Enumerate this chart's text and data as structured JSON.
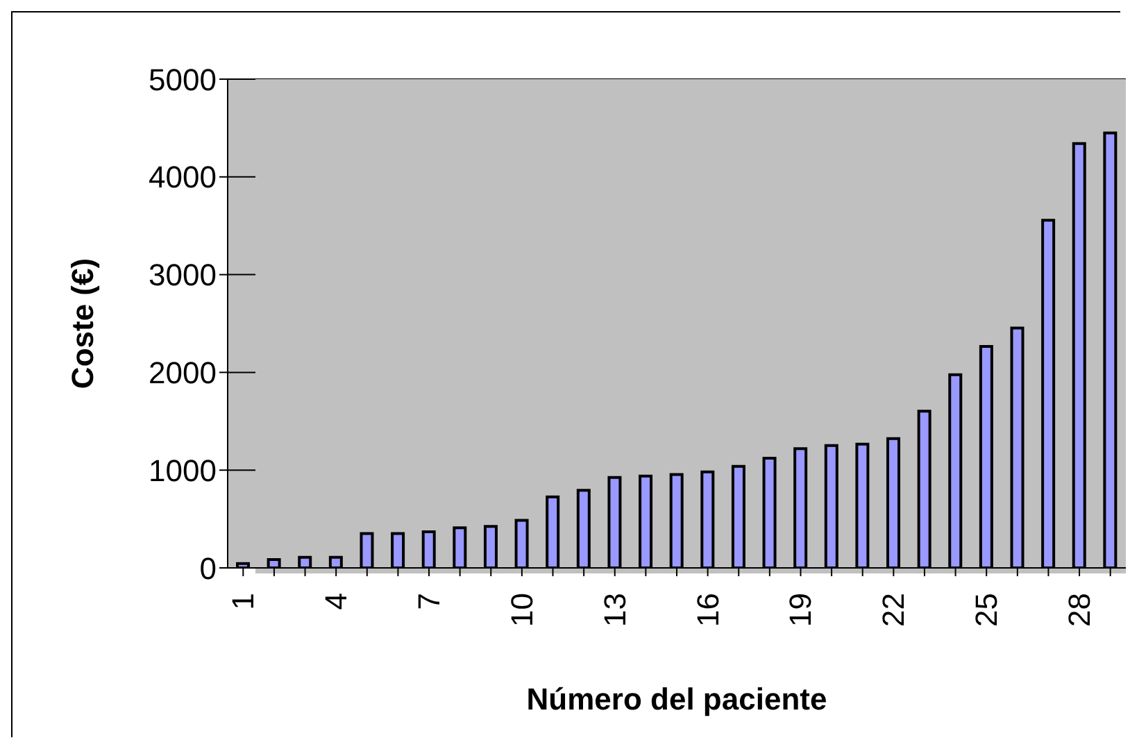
{
  "chart_data": {
    "type": "bar",
    "xlabel": "Número del paciente",
    "ylabel": "Coste (€)",
    "categories": [
      "1",
      null,
      null,
      "4",
      null,
      null,
      "7",
      null,
      null,
      "10",
      null,
      null,
      "13",
      null,
      null,
      "16",
      null,
      null,
      "19",
      null,
      null,
      "22",
      null,
      null,
      "25",
      null,
      null,
      "28",
      null
    ],
    "values": [
      45,
      85,
      108,
      108,
      352,
      352,
      370,
      410,
      425,
      487,
      727,
      793,
      925,
      940,
      955,
      982,
      1038,
      1122,
      1220,
      1252,
      1266,
      1322,
      1603,
      1977,
      2266,
      2454,
      3557,
      4341,
      4450
    ],
    "color": "#9999ff",
    "ylim": [
      0,
      5000
    ],
    "yticks": [
      0,
      1000,
      2000,
      3000,
      4000,
      5000
    ],
    "grid": "y"
  }
}
